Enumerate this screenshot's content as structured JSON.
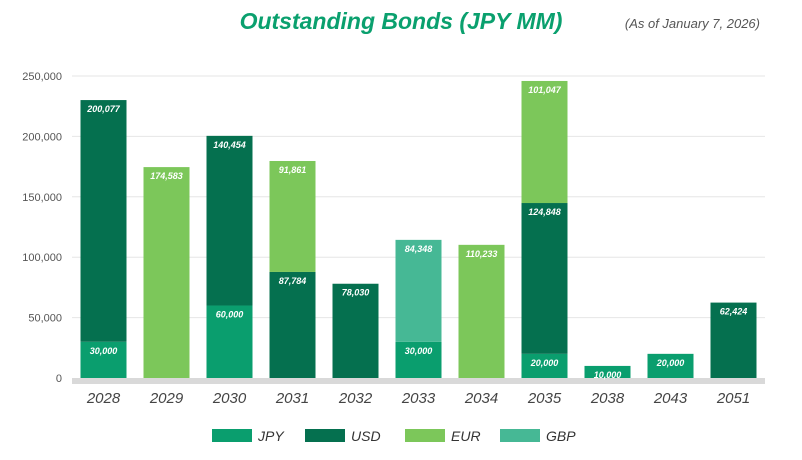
{
  "title": "Outstanding Bonds (JPY MM)",
  "as_of": "(As of January 7, 2026)",
  "colors": {
    "JPY": "#0a9e6e",
    "USD": "#05704f",
    "EUR": "#7cc75a",
    "GBP": "#46b895"
  },
  "chart_data": {
    "type": "bar",
    "stacked": true,
    "title": "Outstanding Bonds (JPY MM)",
    "ylim": [
      0,
      250000
    ],
    "yticks": [
      "0",
      "50,000",
      "100,000",
      "150,000",
      "200,000",
      "250,000"
    ],
    "ytick_values": [
      0,
      50000,
      100000,
      150000,
      200000,
      250000
    ],
    "grid": true,
    "legend": "bottom",
    "categories": [
      "2028",
      "2029",
      "2030",
      "2031",
      "2032",
      "2033",
      "2034",
      "2035",
      "2038",
      "2043",
      "2051"
    ],
    "series": [
      {
        "name": "JPY",
        "values": [
          30000,
          null,
          60000,
          null,
          null,
          30000,
          null,
          20000,
          10000,
          20000,
          null
        ],
        "labels": [
          "30,000",
          "",
          "60,000",
          "",
          "",
          "30,000",
          "",
          "20,000",
          "10,000",
          "20,000",
          ""
        ]
      },
      {
        "name": "USD",
        "values": [
          200077,
          null,
          140454,
          87784,
          78030,
          null,
          null,
          124848,
          null,
          null,
          62424
        ],
        "labels": [
          "200,077",
          "",
          "140,454",
          "87,784",
          "78,030",
          "",
          "",
          "124,848",
          "",
          "",
          "62,424"
        ]
      },
      {
        "name": "EUR",
        "values": [
          null,
          174583,
          null,
          91861,
          null,
          null,
          110233,
          101047,
          null,
          null,
          null
        ],
        "labels": [
          "",
          "174,583",
          "",
          "91,861",
          "",
          "",
          "110,233",
          "101,047",
          "",
          "",
          ""
        ]
      },
      {
        "name": "GBP",
        "values": [
          null,
          null,
          null,
          null,
          null,
          84348,
          null,
          null,
          null,
          null,
          null
        ],
        "labels": [
          "",
          "",
          "",
          "",
          "",
          "84,348",
          "",
          "",
          "",
          "",
          ""
        ]
      }
    ]
  }
}
